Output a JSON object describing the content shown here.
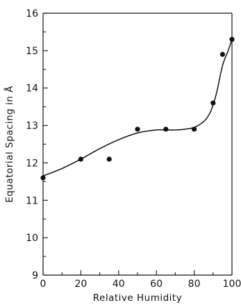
{
  "chart_data": {
    "type": "scatter",
    "title": "",
    "xlabel": "Relative Humidity",
    "ylabel": "Equatorial Spacing in Å",
    "xlim": [
      0,
      100
    ],
    "ylim": [
      9,
      16
    ],
    "x_ticks": [
      0,
      20,
      40,
      60,
      80,
      100
    ],
    "x_tick_labels": [
      "0",
      "20",
      "40",
      "60",
      "80",
      "100"
    ],
    "x_minor_step": 10,
    "y_ticks": [
      9,
      10,
      11,
      12,
      13,
      14,
      15,
      16
    ],
    "y_tick_labels": [
      "9",
      "10",
      "11",
      "12",
      "13",
      "14",
      "15",
      "16"
    ],
    "y_minor_step": 0.5,
    "grid": false,
    "series": [
      {
        "type": "scatter",
        "x": [
          0,
          20,
          35,
          50,
          65,
          80,
          90,
          95,
          100
        ],
        "y": [
          11.6,
          12.1,
          12.1,
          12.9,
          12.9,
          12.9,
          13.6,
          14.9,
          15.3
        ]
      },
      {
        "type": "line",
        "x": [
          0,
          10,
          20,
          30,
          40,
          50,
          60,
          65,
          70,
          75,
          80,
          85,
          88,
          90,
          92,
          95,
          98,
          100
        ],
        "y": [
          11.65,
          11.85,
          12.1,
          12.38,
          12.62,
          12.8,
          12.88,
          12.88,
          12.88,
          12.9,
          12.95,
          13.1,
          13.3,
          13.55,
          13.9,
          14.6,
          15.0,
          15.3
        ]
      }
    ]
  }
}
